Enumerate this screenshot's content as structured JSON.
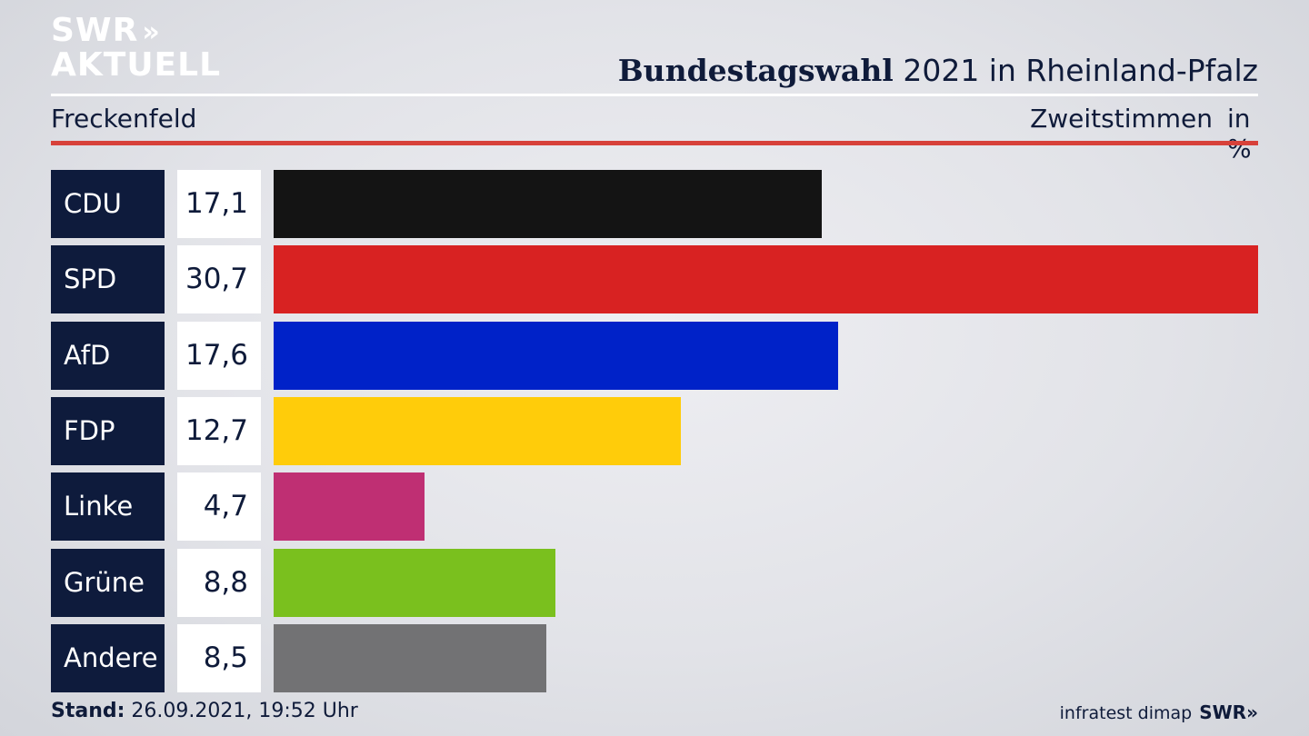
{
  "logo": {
    "line1": "SWR",
    "chevrons": "»",
    "line2": "AKTUELL"
  },
  "title": {
    "bold": "Bundestagswahl",
    "rest": " 2021 in Rheinland-Pfalz"
  },
  "subtitle": "Freckenfeld",
  "metric": "Zweitstimmen",
  "unit": "in %",
  "chart_data": {
    "type": "bar",
    "orientation": "horizontal",
    "categories": [
      "CDU",
      "SPD",
      "AfD",
      "FDP",
      "Linke",
      "Grüne",
      "Andere"
    ],
    "values": [
      17.1,
      30.7,
      17.6,
      12.7,
      4.7,
      8.8,
      8.5
    ],
    "value_labels": [
      "17,1",
      "30,7",
      "17,6",
      "12,7",
      "4,7",
      "8,8",
      "8,5"
    ],
    "colors": [
      "#141414",
      "#d82222",
      "#0022c8",
      "#ffcc0a",
      "#bf2f73",
      "#7ac01e",
      "#727274"
    ],
    "xlim": [
      0,
      30.7
    ]
  },
  "footer": {
    "stand_label": "Stand:",
    "stand_value": " 26.09.2021, 19:52 Uhr",
    "source": "infratest dimap",
    "brand": "SWR»"
  }
}
